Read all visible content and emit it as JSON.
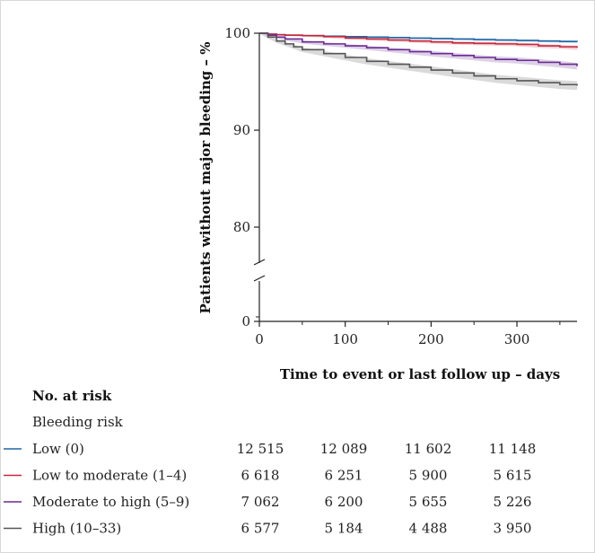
{
  "chart_data": {
    "type": "line",
    "subtype": "kaplan-meier",
    "xlabel": "Time to event or last follow up – days",
    "ylabel": "Patients without major bleeding – %",
    "xlim": [
      0,
      370
    ],
    "ylim": [
      0,
      100
    ],
    "y_axis_break": [
      0,
      75
    ],
    "x_ticks": [
      0,
      100,
      200,
      300
    ],
    "x_tick_labels": [
      "0",
      "100",
      "200",
      "300"
    ],
    "y_ticks": [
      0,
      80,
      90,
      100
    ],
    "y_tick_labels": [
      "0",
      "80",
      "90",
      "100"
    ],
    "grid": false,
    "confidence_bands": true,
    "series": [
      {
        "name": "Low (0)",
        "color": "#2166a6",
        "x": [
          0,
          10,
          20,
          30,
          50,
          75,
          100,
          125,
          150,
          175,
          200,
          225,
          250,
          275,
          300,
          325,
          350,
          370
        ],
        "values": [
          100,
          99.9,
          99.85,
          99.8,
          99.75,
          99.7,
          99.65,
          99.6,
          99.55,
          99.5,
          99.45,
          99.4,
          99.35,
          99.3,
          99.25,
          99.2,
          99.15,
          99.1
        ],
        "ci_half_width": [
          0,
          0.05,
          0.05,
          0.06,
          0.06,
          0.07,
          0.08,
          0.08,
          0.09,
          0.09,
          0.1,
          0.1,
          0.11,
          0.11,
          0.12,
          0.12,
          0.13,
          0.13
        ]
      },
      {
        "name": "Low to moderate (1–4)",
        "color": "#c5283d",
        "x": [
          0,
          10,
          20,
          30,
          50,
          75,
          100,
          125,
          150,
          175,
          200,
          225,
          250,
          275,
          300,
          325,
          350,
          370
        ],
        "values": [
          100,
          99.9,
          99.85,
          99.8,
          99.75,
          99.65,
          99.5,
          99.4,
          99.3,
          99.2,
          99.1,
          99.0,
          98.95,
          98.9,
          98.85,
          98.7,
          98.6,
          98.5
        ],
        "ci_half_width": [
          0,
          0.07,
          0.08,
          0.09,
          0.1,
          0.11,
          0.12,
          0.13,
          0.14,
          0.15,
          0.16,
          0.17,
          0.18,
          0.18,
          0.19,
          0.2,
          0.2,
          0.21
        ]
      },
      {
        "name": "Moderate to high (5–9)",
        "color": "#6a2c91",
        "x": [
          0,
          10,
          20,
          30,
          50,
          75,
          100,
          125,
          150,
          175,
          200,
          225,
          250,
          275,
          300,
          325,
          350,
          370
        ],
        "values": [
          100,
          99.8,
          99.6,
          99.4,
          99.1,
          98.9,
          98.7,
          98.5,
          98.3,
          98.1,
          97.9,
          97.7,
          97.5,
          97.3,
          97.2,
          97.0,
          96.8,
          96.6
        ],
        "ci_half_width": [
          0,
          0.1,
          0.12,
          0.14,
          0.16,
          0.18,
          0.2,
          0.22,
          0.24,
          0.26,
          0.28,
          0.29,
          0.3,
          0.31,
          0.32,
          0.33,
          0.34,
          0.35
        ]
      },
      {
        "name": "High (10–33)",
        "color": "#555555",
        "x": [
          0,
          10,
          20,
          30,
          40,
          50,
          75,
          100,
          125,
          150,
          175,
          200,
          225,
          250,
          275,
          300,
          325,
          350,
          370
        ],
        "values": [
          100,
          99.6,
          99.2,
          98.9,
          98.6,
          98.3,
          97.9,
          97.5,
          97.1,
          96.8,
          96.5,
          96.2,
          95.9,
          95.6,
          95.3,
          95.1,
          94.9,
          94.7,
          94.6
        ],
        "ci_half_width": [
          0,
          0.14,
          0.18,
          0.2,
          0.22,
          0.24,
          0.27,
          0.3,
          0.32,
          0.34,
          0.36,
          0.38,
          0.4,
          0.41,
          0.42,
          0.43,
          0.44,
          0.45,
          0.46
        ]
      }
    ]
  },
  "risk_table": {
    "heading": "No. at risk",
    "subheading": "Bleeding risk",
    "rows": [
      {
        "label": "Low (0)",
        "color": "#2166a6",
        "values": [
          "12 515",
          "12 089",
          "11 602",
          "11 148"
        ]
      },
      {
        "label": "Low to moderate (1–4)",
        "color": "#c5283d",
        "values": [
          "6 618",
          "6 251",
          "5 900",
          "5 615"
        ]
      },
      {
        "label": "Moderate to high (5–9)",
        "color": "#6a2c91",
        "values": [
          "7 062",
          "6 200",
          "5 655",
          "5 226"
        ]
      },
      {
        "label": "High (10–33)",
        "color": "#555555",
        "values": [
          "6 577",
          "5 184",
          "4 488",
          "3 950"
        ]
      }
    ]
  }
}
